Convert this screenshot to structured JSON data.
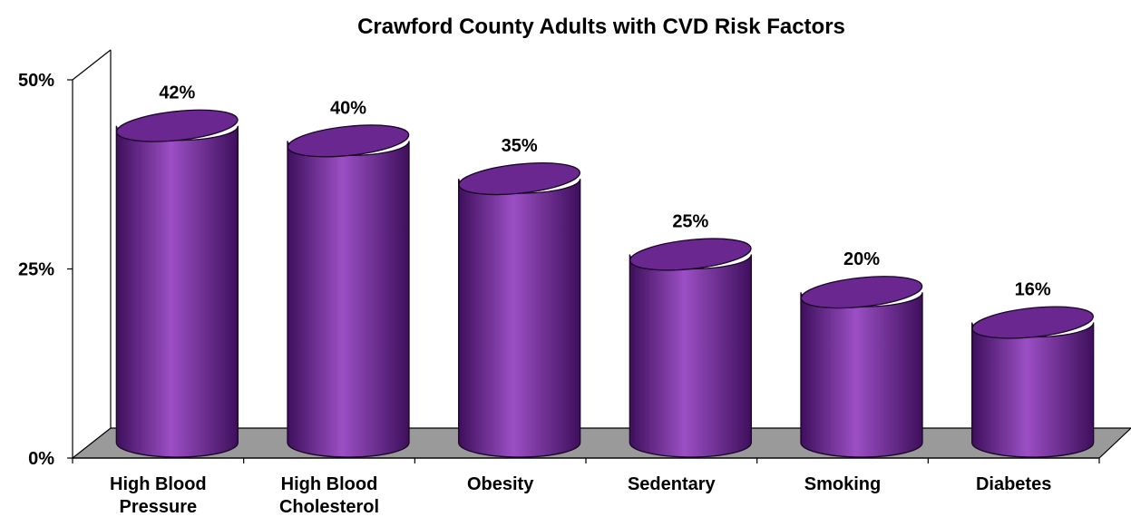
{
  "chart_data": {
    "type": "bar",
    "title": "Crawford County Adults with CVD Risk Factors",
    "categories": [
      [
        "High Blood",
        "Pressure"
      ],
      [
        "High Blood",
        "Cholesterol"
      ],
      [
        "Obesity"
      ],
      [
        "Sedentary"
      ],
      [
        "Smoking"
      ],
      [
        "Diabetes"
      ]
    ],
    "values": [
      42,
      40,
      35,
      25,
      20,
      16
    ],
    "data_labels": [
      "42%",
      "40%",
      "35%",
      "25%",
      "20%",
      "16%"
    ],
    "yticks": [
      0,
      25,
      50
    ],
    "ytick_labels": [
      "0%",
      "25%",
      "50%"
    ],
    "ylim": [
      0,
      50
    ],
    "xlabel": "",
    "ylabel": "",
    "grid": false,
    "legend": "none",
    "style": "3d-cylinder",
    "colors": {
      "bar": "#7a2da0",
      "bar_dark": "#3e0f5c",
      "bar_light": "#9b4fc4",
      "bar_top": "#6a2790",
      "floor": "#9a9a9a",
      "axis": "#000000"
    }
  }
}
